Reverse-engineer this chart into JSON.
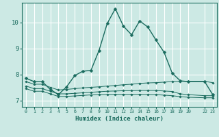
{
  "xlabel": "Humidex (Indice chaleur)",
  "background_color": "#cce9e4",
  "grid_color": "#ffffff",
  "line_color": "#1a6b5e",
  "ylim": [
    6.75,
    10.75
  ],
  "xlim": [
    -0.5,
    23.5
  ],
  "yticks": [
    7,
    8,
    9,
    10
  ],
  "xticks": [
    0,
    1,
    2,
    3,
    4,
    5,
    6,
    7,
    8,
    9,
    10,
    11,
    12,
    13,
    14,
    15,
    16,
    17,
    18,
    19,
    20,
    22,
    23
  ],
  "xtick_labels": [
    "0",
    "1",
    "2",
    "3",
    "4",
    "5",
    "6",
    "7",
    "8",
    "9",
    "10",
    "11",
    "12",
    "13",
    "14",
    "15",
    "16",
    "17",
    "18",
    "19",
    "20",
    "22",
    "23"
  ],
  "series": [
    {
      "x": [
        0,
        1,
        2,
        3,
        4,
        5,
        6,
        7,
        8,
        9,
        10,
        11,
        12,
        13,
        14,
        15,
        16,
        17,
        18,
        19,
        20,
        22,
        23
      ],
      "y": [
        7.85,
        7.72,
        7.72,
        7.42,
        7.22,
        7.52,
        7.95,
        8.12,
        8.15,
        8.92,
        9.95,
        10.52,
        9.85,
        9.52,
        10.05,
        9.82,
        9.32,
        8.85,
        8.05,
        7.75,
        7.72,
        7.72,
        7.22
      ]
    },
    {
      "x": [
        0,
        1,
        2,
        3,
        4,
        5,
        6,
        7,
        8,
        9,
        10,
        11,
        12,
        13,
        14,
        15,
        16,
        17,
        18,
        19,
        20,
        22,
        23
      ],
      "y": [
        7.72,
        7.62,
        7.62,
        7.5,
        7.4,
        7.42,
        7.45,
        7.48,
        7.5,
        7.52,
        7.55,
        7.57,
        7.6,
        7.62,
        7.65,
        7.67,
        7.68,
        7.7,
        7.72,
        7.73,
        7.73,
        7.73,
        7.68
      ]
    },
    {
      "x": [
        0,
        1,
        2,
        3,
        4,
        5,
        6,
        7,
        8,
        9,
        10,
        11,
        12,
        13,
        14,
        15,
        16,
        17,
        18,
        19,
        20,
        22,
        23
      ],
      "y": [
        7.55,
        7.45,
        7.45,
        7.35,
        7.25,
        7.25,
        7.27,
        7.29,
        7.31,
        7.33,
        7.35,
        7.36,
        7.37,
        7.37,
        7.38,
        7.38,
        7.38,
        7.36,
        7.34,
        7.25,
        7.22,
        7.18,
        7.18
      ]
    },
    {
      "x": [
        0,
        1,
        2,
        3,
        4,
        5,
        6,
        7,
        8,
        9,
        10,
        11,
        12,
        13,
        14,
        15,
        16,
        17,
        18,
        19,
        20,
        22,
        23
      ],
      "y": [
        7.45,
        7.35,
        7.35,
        7.25,
        7.15,
        7.15,
        7.17,
        7.19,
        7.21,
        7.22,
        7.22,
        7.23,
        7.23,
        7.23,
        7.23,
        7.22,
        7.22,
        7.2,
        7.18,
        7.14,
        7.12,
        7.1,
        7.1
      ]
    }
  ]
}
